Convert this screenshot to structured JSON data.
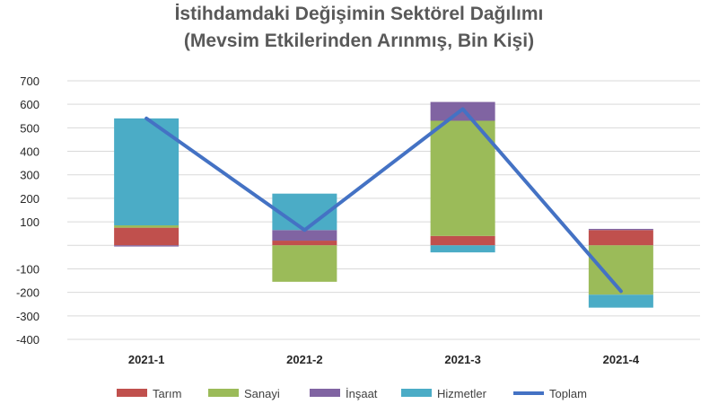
{
  "title_line1": "İstihdamdaki Değişimin Sektörel Dağılımı",
  "title_line2": "(Mevsim Etkilerinden Arınmış, Bin Kişi)",
  "chart_data": {
    "type": "bar",
    "stacked": true,
    "categories": [
      "2021-1",
      "2021-2",
      "2021-3",
      "2021-4"
    ],
    "series": [
      {
        "name": "Tarım",
        "values": [
          75,
          20,
          40,
          65
        ],
        "color": "#C0504D"
      },
      {
        "name": "Sanayi",
        "values": [
          10,
          -155,
          490,
          -210
        ],
        "color": "#9BBB59"
      },
      {
        "name": "İnşaat",
        "values": [
          -5,
          45,
          80,
          5
        ],
        "color": "#8064A2"
      },
      {
        "name": "Hizmetler",
        "values": [
          455,
          155,
          -30,
          -55
        ],
        "color": "#4BACC6"
      }
    ],
    "line": {
      "name": "Toplam",
      "values": [
        540,
        65,
        580,
        -195
      ],
      "color": "#4472C4"
    },
    "ylim": [
      -400,
      700
    ],
    "yticks": [
      "700",
      "600",
      "500",
      "400",
      "300",
      "200",
      "100",
      "",
      "-100",
      "-200",
      "-300",
      "-400"
    ],
    "ytick_values": [
      700,
      600,
      500,
      400,
      300,
      200,
      100,
      0,
      -100,
      -200,
      -300,
      -400
    ],
    "grid": true,
    "legend_position": "bottom"
  }
}
